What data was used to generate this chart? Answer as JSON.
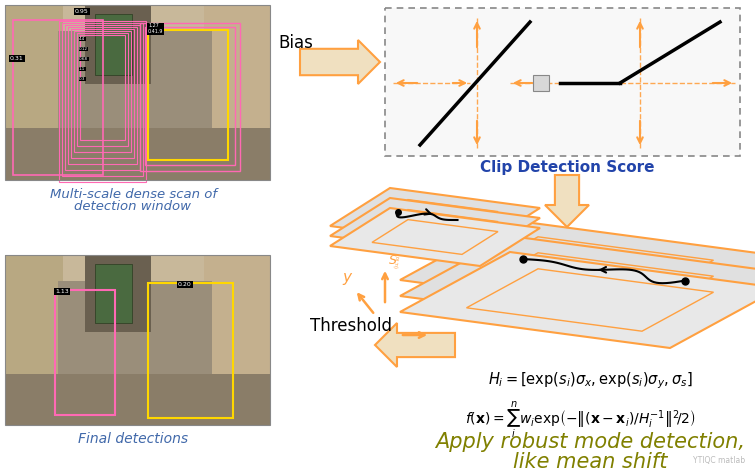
{
  "bg_color": "#ffffff",
  "blue_color": "#4169AA",
  "olive_color": "#808000",
  "orange_color": "#FFA040",
  "black_color": "#000000",
  "gray_color": "#D3D3D3",
  "label_top_left1": "Multi-scale dense scan of",
  "label_top_left2": "detection window",
  "label_bottom_left": "Final detections",
  "label_bias": "Bias",
  "label_clip": "Clip Detection Score",
  "label_threshold": "Threshold",
  "label_apply1": "Apply robust mode detection,",
  "label_apply2": "like mean shift",
  "fig_width": 7.55,
  "fig_height": 4.72
}
